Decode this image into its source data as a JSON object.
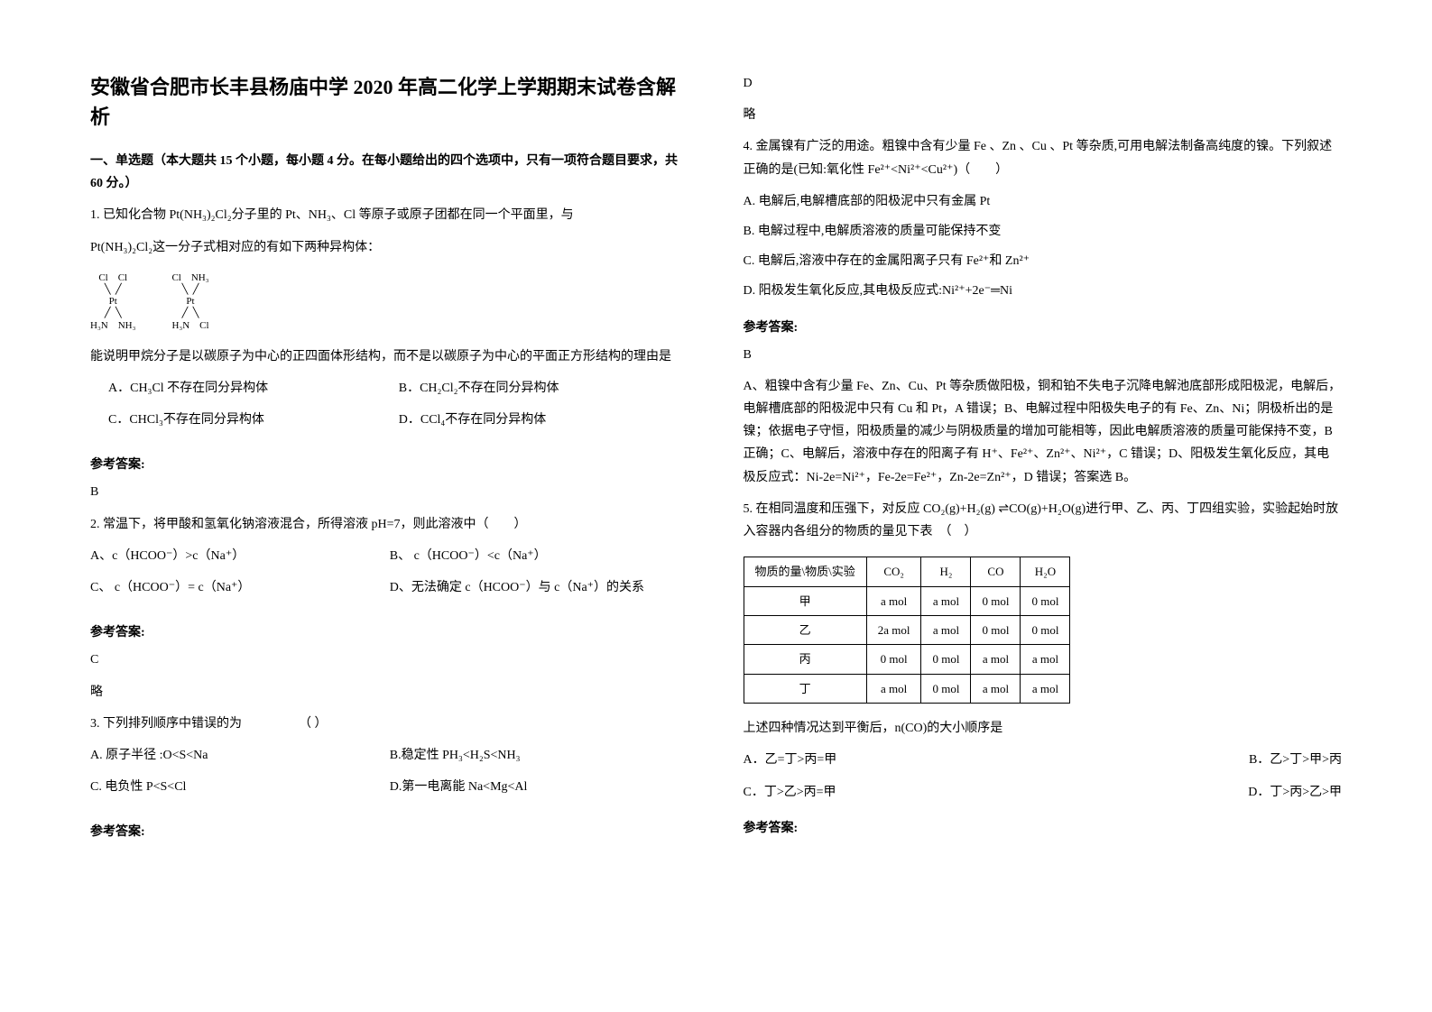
{
  "title": "安徽省合肥市长丰县杨庙中学 2020 年高二化学上学期期末试卷含解析",
  "section1_header": "一、单选题（本大题共 15 个小题，每小题 4 分。在每小题给出的四个选项中，只有一项符合题目要求，共 60 分。）",
  "q1": {
    "text1": "1. 已知化合物 Pt(NH₃)₂Cl₂分子里的 Pt、NH₃、Cl 等原子或原子团都在同一个平面里，与",
    "text2": "Pt(NH₃)₂Cl₂这一分子式相对应的有如下两种异构体：",
    "text3": "能说明甲烷分子是以碳原子为中心的正四面体形结构，而不是以碳原子为中心的平面正方形结构的理由是",
    "optA": "A．CH₃Cl 不存在同分异构体",
    "optB": "B．CH₂Cl₂不存在同分异构体",
    "optC": "C．CHCl₃不存在同分异构体",
    "optD": "D．CCl₄不存在同分异构体"
  },
  "answer_label": "参考答案:",
  "q1_answer": "B",
  "q2": {
    "text": "2. 常温下，将甲酸和氢氧化钠溶液混合，所得溶液 pH=7，则此溶液中（　　）",
    "optA": "A、c（HCOO⁻）>c（Na⁺）",
    "optB": "B、 c（HCOO⁻）<c（Na⁺）",
    "optC": "C、 c（HCOO⁻）= c（Na⁺）",
    "optD": "D、无法确定 c（HCOO⁻）与 c（Na⁺）的关系",
    "answer": "C",
    "explanation": "略"
  },
  "q3": {
    "text": "3. 下列排列顺序中错误的为　　　　　（  ）",
    "optA": "A. 原子半径 :O<S<Na",
    "optB": "B.稳定性 PH₃<H₂S<NH₃",
    "optC": "  C. 电负性 P<S<Cl",
    "optD": "D.第一电离能 Na<Mg<Al",
    "answer": "D",
    "explanation": "略"
  },
  "q4": {
    "text": "4. 金属镍有广泛的用途。粗镍中含有少量 Fe 、Zn 、Cu 、Pt 等杂质,可用电解法制备高纯度的镍。下列叙述正确的是(已知:氧化性 Fe²⁺<Ni²⁺<Cu²⁺)（　　）",
    "optA": "A. 电解后,电解槽底部的阳极泥中只有金属 Pt",
    "optB": "B. 电解过程中,电解质溶液的质量可能保持不变",
    "optC": "C. 电解后,溶液中存在的金属阳离子只有 Fe²⁺和 Zn²⁺",
    "optD": "D. 阳极发生氧化反应,其电极反应式:Ni²⁺+2e⁻═Ni",
    "answer": "B",
    "explanation": "A、粗镍中含有少量 Fe、Zn、Cu、Pt 等杂质做阳极，铜和铂不失电子沉降电解池底部形成阳极泥，电解后，电解槽底部的阳极泥中只有 Cu 和 Pt，A 错误；B、电解过程中阳极失电子的有 Fe、Zn、Ni；阴极析出的是镍；依据电子守恒，阳极质量的减少与阴极质量的增加可能相等，因此电解质溶液的质量可能保持不变，B 正确；C、电解后，溶液中存在的阳离子有 H⁺、Fe²⁺、Zn²⁺、Ni²⁺，C 错误；D、阳极发生氧化反应，其电极反应式：Ni-2e=Ni²⁺，Fe-2e=Fe²⁺，Zn-2e=Zn²⁺，D 错误；答案选 B。"
  },
  "q5": {
    "text": "5. 在相同温度和压强下，对反应 CO₂(g)+H₂(g) ⇌CO(g)+H₂O(g)进行甲、乙、丙、丁四组实验，实验起始时放入容器内各组分的物质的量见下表　（　）",
    "text2": "上述四种情况达到平衡后，n(CO)的大小顺序是",
    "optA": "A．乙=丁>丙=甲",
    "optB": "B．乙>丁>甲>丙",
    "optC": "C．丁>乙>丙=甲",
    "optD": "D．丁>丙>乙>甲"
  },
  "table": {
    "header_diag": "物质的量\\物质\\实验",
    "headers": [
      "CO₂",
      "H₂",
      "CO",
      "H₂O"
    ],
    "rows": [
      {
        "label": "甲",
        "cells": [
          "a mol",
          "a mol",
          "0 mol",
          "0 mol"
        ]
      },
      {
        "label": "乙",
        "cells": [
          "2a mol",
          "a mol",
          "0 mol",
          "0 mol"
        ]
      },
      {
        "label": "丙",
        "cells": [
          "0 mol",
          "0 mol",
          "a mol",
          "a mol"
        ]
      },
      {
        "label": "丁",
        "cells": [
          "a mol",
          "0 mol",
          "a mol",
          "a mol"
        ]
      }
    ]
  },
  "diagram": {
    "s1": {
      "top": "Cl　Cl",
      "mid": "Pt",
      "bot": "H₃N　NH₃"
    },
    "s2": {
      "top": "Cl　NH₃",
      "mid": "Pt",
      "bot": "H₃N　Cl"
    }
  }
}
